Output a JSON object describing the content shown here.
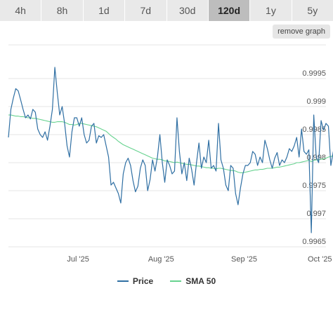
{
  "tabs": [
    {
      "label": "4h"
    },
    {
      "label": "8h"
    },
    {
      "label": "1d"
    },
    {
      "label": "7d"
    },
    {
      "label": "30d"
    },
    {
      "label": "120d",
      "active": true
    },
    {
      "label": "1y"
    },
    {
      "label": "5y"
    }
  ],
  "remove_graph_label": "remove graph",
  "colors": {
    "price": "#2f6fa3",
    "sma": "#66d28f",
    "grid": "#e6e6e6",
    "tab_active": "#bdbdbd",
    "tab": "#e9e9e9"
  },
  "chart_data": {
    "type": "line",
    "grid": true,
    "legend_position": "bottom",
    "ylim": [
      0.99645,
      1.0001
    ],
    "xlim": [
      0,
      130
    ],
    "y_ticks": [
      {
        "value": 0.9965,
        "label": "0.9965"
      },
      {
        "value": 0.997,
        "label": "0.997"
      },
      {
        "value": 0.9975,
        "label": "0.9975"
      },
      {
        "value": 0.998,
        "label": "0.998"
      },
      {
        "value": 0.9985,
        "label": "0.9985"
      },
      {
        "value": 0.999,
        "label": "0.999"
      },
      {
        "value": 0.9995,
        "label": "0.9995"
      }
    ],
    "x_ticks": [
      {
        "value": 28.5,
        "label": "Jul '25"
      },
      {
        "value": 62.5,
        "label": "Aug '25"
      },
      {
        "value": 96.5,
        "label": "Sep '25"
      },
      {
        "value": 127.5,
        "label": "Oct '25"
      }
    ],
    "series": [
      {
        "name": "Price",
        "values": [
          0.99845,
          0.99895,
          0.99915,
          0.99932,
          0.99928,
          0.99912,
          0.99895,
          0.9988,
          0.99885,
          0.99878,
          0.99895,
          0.9989,
          0.9986,
          0.9985,
          0.99845,
          0.99855,
          0.9984,
          0.99865,
          0.99895,
          0.9997,
          0.99925,
          0.99885,
          0.999,
          0.9987,
          0.9983,
          0.9981,
          0.99855,
          0.9988,
          0.9988,
          0.99865,
          0.9988,
          0.9985,
          0.99835,
          0.9984,
          0.99865,
          0.9987,
          0.99835,
          0.99848,
          0.99845,
          0.9985,
          0.9983,
          0.9981,
          0.9976,
          0.99765,
          0.99755,
          0.99745,
          0.99728,
          0.9978,
          0.998,
          0.99808,
          0.99795,
          0.99768,
          0.99748,
          0.99758,
          0.9979,
          0.99805,
          0.99795,
          0.9975,
          0.9977,
          0.99805,
          0.99785,
          0.9981,
          0.9985,
          0.998,
          0.99765,
          0.99805,
          0.99795,
          0.9978,
          0.99785,
          0.9988,
          0.9982,
          0.9978,
          0.998,
          0.99768,
          0.99808,
          0.99788,
          0.9976,
          0.998,
          0.99835,
          0.9979,
          0.9981,
          0.998,
          0.9984,
          0.9979,
          0.99795,
          0.99785,
          0.9987,
          0.99805,
          0.9979,
          0.9976,
          0.9975,
          0.99795,
          0.9979,
          0.99745,
          0.99725,
          0.99755,
          0.9978,
          0.99795,
          0.99795,
          0.998,
          0.9982,
          0.99815,
          0.99795,
          0.9981,
          0.998,
          0.9984,
          0.99825,
          0.99805,
          0.9979,
          0.99808,
          0.99818,
          0.99795,
          0.99805,
          0.998,
          0.9981,
          0.99825,
          0.9982,
          0.9983,
          0.99845,
          0.9981,
          0.9986,
          0.9982,
          0.99815,
          0.99823,
          0.99675,
          0.99885,
          0.9981,
          0.998,
          0.99875,
          0.99858,
          0.9987,
          0.99865,
          0.99795,
          0.9982
        ]
      },
      {
        "name": "SMA 50",
        "values": [
          0.99885,
          0.99885,
          0.99884,
          0.99883,
          0.99883,
          0.99882,
          0.99882,
          0.99881,
          0.9988,
          0.9988,
          0.99879,
          0.99879,
          0.99878,
          0.99877,
          0.99876,
          0.99875,
          0.99874,
          0.99873,
          0.99872,
          0.99872,
          0.99873,
          0.99873,
          0.99873,
          0.99872,
          0.9987,
          0.99868,
          0.99868,
          0.99867,
          0.99868,
          0.9987,
          0.9987,
          0.99869,
          0.99868,
          0.99867,
          0.99866,
          0.99865,
          0.99864,
          0.99862,
          0.9986,
          0.99858,
          0.99856,
          0.99852,
          0.99848,
          0.99845,
          0.99842,
          0.99838,
          0.99835,
          0.99832,
          0.9983,
          0.99828,
          0.99826,
          0.99824,
          0.99822,
          0.9982,
          0.99818,
          0.99816,
          0.99814,
          0.99812,
          0.9981,
          0.99808,
          0.99807,
          0.99806,
          0.99806,
          0.99805,
          0.99803,
          0.99803,
          0.99802,
          0.99801,
          0.998,
          0.99801,
          0.998,
          0.99799,
          0.99798,
          0.99797,
          0.99797,
          0.99796,
          0.99795,
          0.99794,
          0.99794,
          0.99793,
          0.99792,
          0.99791,
          0.99791,
          0.9979,
          0.9979,
          0.99789,
          0.9979,
          0.9979,
          0.99789,
          0.99788,
          0.99787,
          0.99786,
          0.99786,
          0.99785,
          0.99783,
          0.99782,
          0.99782,
          0.99783,
          0.99784,
          0.99785,
          0.99786,
          0.99787,
          0.99787,
          0.99788,
          0.99788,
          0.99789,
          0.9979,
          0.9979,
          0.9979,
          0.99791,
          0.99792,
          0.99792,
          0.99793,
          0.99794,
          0.99795,
          0.99796,
          0.99797,
          0.99798,
          0.998,
          0.998,
          0.99801,
          0.99802,
          0.99803,
          0.99804,
          0.99802,
          0.99804,
          0.99805,
          0.99805,
          0.99806,
          0.99807,
          0.99808,
          0.9981,
          0.99811,
          0.99812
        ]
      }
    ]
  }
}
